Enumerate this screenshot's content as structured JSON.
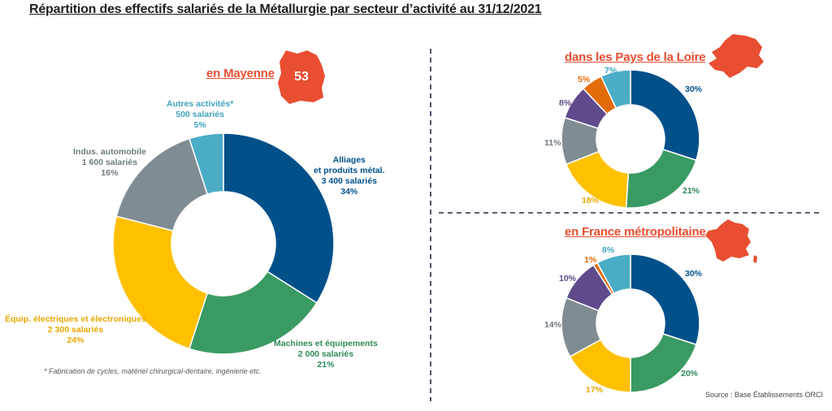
{
  "title": "Répartition des effectifs salariés de la Métallurgie par secteur d’activité au 31/12/2021",
  "colors": {
    "alliages": "#00508a",
    "machines": "#3a9a63",
    "equip": "#ffc000",
    "auto": "#7f8c92",
    "autres": "#4bacc6",
    "orange": "#e36c0a",
    "purple": "#5f4b8b",
    "accent": "#e94e32"
  },
  "mayenne": {
    "title": "en Mayenne",
    "badge": "53",
    "labels": {
      "alliages": [
        "Alliages",
        "et produits métal.",
        "3 400 salariés",
        "34%"
      ],
      "machines": [
        "Machines et équipements",
        "2 000 salariés",
        "21%"
      ],
      "equip": [
        "Équip. électriques et électroniques",
        "2 300 salariés",
        "24%"
      ],
      "auto": [
        "Indus. automobile",
        "1 600 salariés",
        "16%"
      ],
      "autres": [
        "Autres activités*",
        "500 salariés",
        "5%"
      ]
    },
    "footnote": "* Fabrication de cycles, matériel chirurgical-dentaire, ingénierie etc."
  },
  "pdl": {
    "title": "dans les Pays de la Loire",
    "labels": [
      "30%",
      "21%",
      "18%",
      "11%",
      "8%",
      "5%",
      "7%"
    ]
  },
  "france": {
    "title": "en France métropolitaine",
    "labels": [
      "30%",
      "20%",
      "17%",
      "14%",
      "10%",
      "1%",
      "8%"
    ]
  },
  "source": "Source : Base Établissements ORCI",
  "chart_data": [
    {
      "type": "pie",
      "title": "en Mayenne",
      "categories": [
        "Alliages et produits métal.",
        "Machines et équipements",
        "Équip. électriques et électroniques",
        "Indus. automobile",
        "Autres activités*"
      ],
      "values": [
        34,
        21,
        24,
        16,
        5
      ],
      "employees": [
        3400,
        2000,
        2300,
        1600,
        500
      ]
    },
    {
      "type": "pie",
      "title": "dans les Pays de la Loire",
      "values": [
        30,
        21,
        18,
        11,
        8,
        5,
        7
      ]
    },
    {
      "type": "pie",
      "title": "en France métropolitaine",
      "values": [
        30,
        20,
        17,
        14,
        10,
        1,
        8
      ]
    }
  ]
}
